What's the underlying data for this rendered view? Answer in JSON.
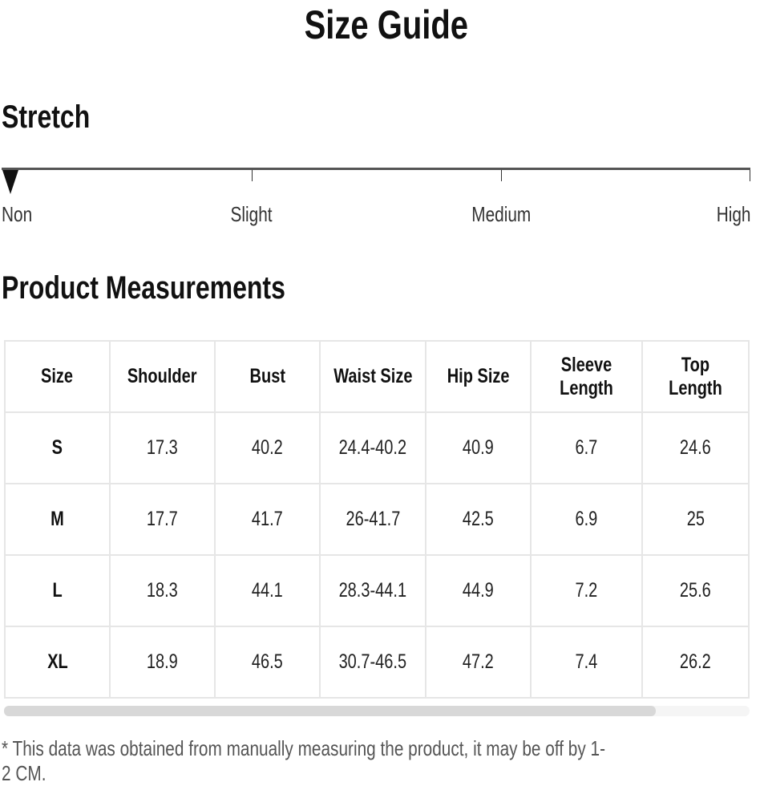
{
  "title": "Size Guide",
  "stretch": {
    "heading": "Stretch",
    "levels": [
      "Non",
      "Slight",
      "Medium",
      "High"
    ],
    "selected": "Non"
  },
  "measurements": {
    "heading": "Product Measurements",
    "columns": [
      "Size",
      "Shoulder",
      "Bust",
      "Waist Size",
      "Hip Size",
      "Sleeve Length",
      "Top Length"
    ],
    "rows": [
      [
        "S",
        "17.3",
        "40.2",
        "24.4-40.2",
        "40.9",
        "6.7",
        "24.6"
      ],
      [
        "M",
        "17.7",
        "41.7",
        "26-41.7",
        "42.5",
        "6.9",
        "25"
      ],
      [
        "L",
        "18.3",
        "44.1",
        "28.3-44.1",
        "44.9",
        "7.2",
        "25.6"
      ],
      [
        "XL",
        "18.9",
        "46.5",
        "30.7-46.5",
        "47.2",
        "7.4",
        "26.2"
      ]
    ]
  },
  "note": "* This data was obtained from manually measuring the product, it may be off by 1-2 CM."
}
